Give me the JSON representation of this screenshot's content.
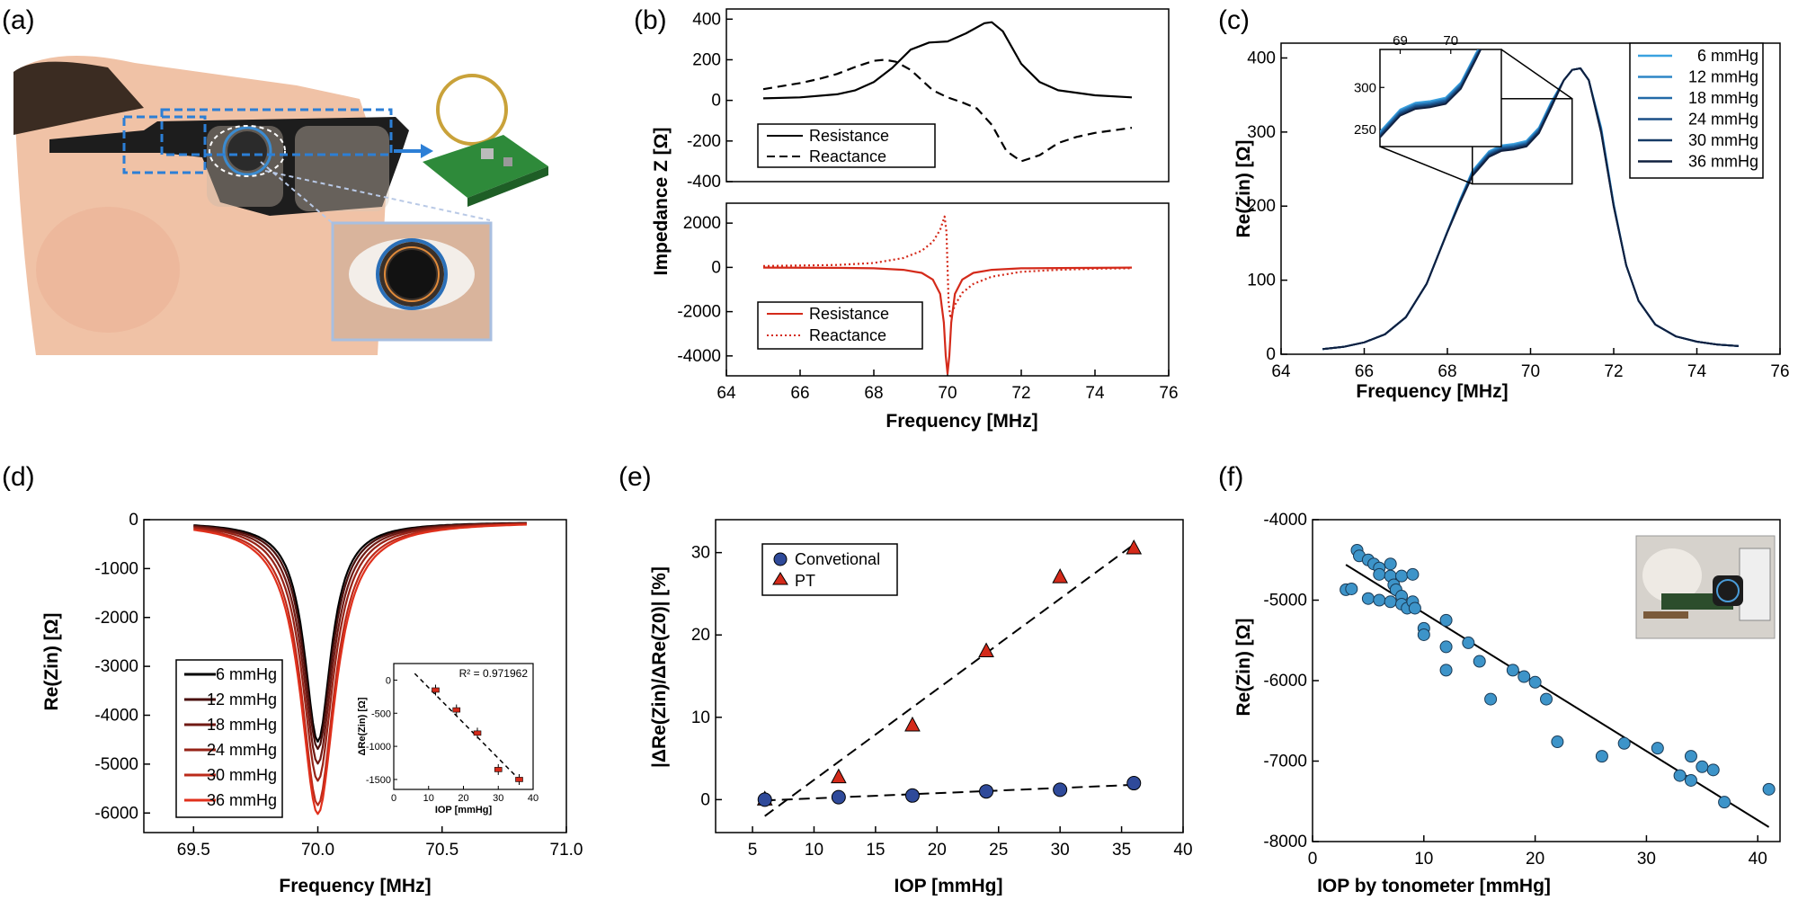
{
  "panels": {
    "a": {
      "label": "(a)"
    },
    "b": {
      "label": "(b)"
    },
    "c": {
      "label": "(c)"
    },
    "d": {
      "label": "(d)"
    },
    "e": {
      "label": "(e)"
    },
    "f": {
      "label": "(f)"
    }
  },
  "colors": {
    "black": "#000000",
    "red": "#d42a1a",
    "blue_marker": "#3d94c9",
    "navy_marker": "#2f4a9a",
    "c_series": [
      "#3aa2e0",
      "#2d86c6",
      "#226aa8",
      "#1a4f86",
      "#163a66",
      "#10203f"
    ],
    "d_series": [
      "#000000",
      "#4a0f0c",
      "#701a14",
      "#962317",
      "#bb2a1a",
      "#e0301c"
    ]
  },
  "chart_data": [
    {
      "id": "b_top",
      "type": "line",
      "ylabel": "Impedance Z [Ω]",
      "xlim": [
        64,
        76
      ],
      "ylim": [
        -400,
        450
      ],
      "yticks": [
        400,
        200,
        0,
        -200,
        -400
      ],
      "legend": "bottom-left",
      "series": [
        {
          "name": "Resistance",
          "style": "solid",
          "x": [
            65,
            66,
            67,
            67.5,
            68,
            68.5,
            69,
            69.5,
            70,
            70.5,
            71,
            71.2,
            71.5,
            72,
            72.5,
            73,
            74,
            75
          ],
          "y": [
            10,
            15,
            30,
            50,
            90,
            160,
            250,
            285,
            290,
            330,
            380,
            385,
            340,
            180,
            90,
            50,
            25,
            15
          ]
        },
        {
          "name": "Reactance",
          "style": "dashed",
          "x": [
            65,
            66,
            66.5,
            67,
            67.5,
            68,
            68.3,
            68.6,
            69,
            69.3,
            69.6,
            70,
            70.4,
            70.8,
            71.2,
            71.6,
            72,
            72.5,
            73,
            73.5,
            74,
            75
          ],
          "y": [
            55,
            85,
            105,
            130,
            165,
            195,
            200,
            190,
            150,
            100,
            50,
            15,
            -10,
            -40,
            -120,
            -250,
            -300,
            -270,
            -210,
            -180,
            -160,
            -135
          ]
        }
      ]
    },
    {
      "id": "b_bottom",
      "type": "line",
      "xlabel": "Frequency [MHz]",
      "xlim": [
        64,
        76
      ],
      "ylim": [
        -4900,
        2900
      ],
      "xticks": [
        64,
        66,
        68,
        70,
        72,
        74,
        76
      ],
      "yticks": [
        2000,
        0,
        -2000,
        -4000
      ],
      "legend": "bottom-left",
      "series": [
        {
          "name": "Resistance",
          "style": "solid",
          "x": [
            65,
            67,
            68,
            68.8,
            69.3,
            69.6,
            69.8,
            69.9,
            69.95,
            70,
            70.05,
            70.1,
            70.2,
            70.4,
            70.7,
            71.2,
            72,
            74,
            75
          ],
          "y": [
            -10,
            -20,
            -40,
            -110,
            -250,
            -550,
            -1200,
            -2500,
            -4000,
            -4800,
            -4000,
            -2500,
            -1200,
            -550,
            -250,
            -110,
            -40,
            -20,
            -10
          ]
        },
        {
          "name": "Reactance",
          "style": "dotted",
          "x": [
            65,
            67,
            68,
            68.8,
            69.3,
            69.6,
            69.8,
            69.92,
            69.97,
            70,
            70.03,
            70.08,
            70.2,
            70.4,
            70.7,
            71.2,
            72,
            73,
            74,
            75
          ],
          "y": [
            60,
            110,
            200,
            420,
            750,
            1150,
            1700,
            2300,
            1600,
            0,
            -1600,
            -2300,
            -1700,
            -1150,
            -750,
            -420,
            -200,
            -110,
            -60,
            -40
          ]
        }
      ]
    },
    {
      "id": "c",
      "type": "line",
      "xlabel": "Frequency [MHz]",
      "ylabel": "Re(Zin) [Ω]",
      "xlim": [
        64,
        76
      ],
      "ylim": [
        0,
        420
      ],
      "xticks": [
        64,
        66,
        68,
        70,
        72,
        74,
        76
      ],
      "yticks": [
        0,
        100,
        200,
        300,
        400
      ],
      "legend": "top-right",
      "base_x": [
        65,
        65.5,
        66,
        66.5,
        67,
        67.5,
        68,
        68.3,
        68.6,
        69,
        69.3,
        69.6,
        69.9,
        70.2,
        70.5,
        70.8,
        71,
        71.2,
        71.4,
        71.7,
        72,
        72.3,
        72.6,
        73,
        73.5,
        74,
        74.5,
        75
      ],
      "base_y": [
        7,
        10,
        16,
        27,
        50,
        95,
        165,
        205,
        242,
        268,
        276,
        278,
        282,
        300,
        335,
        370,
        384,
        386,
        370,
        300,
        200,
        120,
        72,
        40,
        24,
        17,
        13,
        11
      ],
      "series": [
        {
          "name": "6 mmHg",
          "offset": 6
        },
        {
          "name": "12 mmHg",
          "offset": 4.5
        },
        {
          "name": "18 mmHg",
          "offset": 3
        },
        {
          "name": "24 mmHg",
          "offset": 1.5
        },
        {
          "name": "30 mmHg",
          "offset": 0
        },
        {
          "name": "36 mmHg",
          "offset": -1.5
        }
      ],
      "inset": {
        "xticks": [
          69,
          70
        ],
        "yticks": [
          300,
          250
        ],
        "xlim": [
          68.6,
          71.0
        ],
        "ylim": [
          230,
          345
        ]
      }
    },
    {
      "id": "d",
      "type": "line",
      "xlabel": "Frequency [MHz]",
      "ylabel": "Re(Zin) [Ω]",
      "xlim": [
        69.3,
        71.0
      ],
      "ylim": [
        -6400,
        0
      ],
      "xticks": [
        69.5,
        70.0,
        70.5,
        71.0
      ],
      "yticks": [
        0,
        -1000,
        -2000,
        -3000,
        -4000,
        -5000,
        -6000
      ],
      "legend": "bottom-left",
      "series": [
        {
          "name": "6 mmHg",
          "depth": 4500
        },
        {
          "name": "12 mmHg",
          "depth": 4650
        },
        {
          "name": "18 mmHg",
          "depth": 4950
        },
        {
          "name": "24 mmHg",
          "depth": 5300
        },
        {
          "name": "30 mmHg",
          "depth": 5800
        },
        {
          "name": "36 mmHg",
          "depth": 5980
        }
      ],
      "inset": {
        "xlabel": "IOP [mmHg]",
        "ylabel": "ΔRe(Zin) [Ω]",
        "annotation": "R² = 0.971962",
        "xticks": [
          0,
          10,
          20,
          30,
          40
        ],
        "yticks": [
          0,
          -500,
          -1000,
          -1500
        ],
        "xlim": [
          0,
          40
        ],
        "ylim": [
          -1650,
          250
        ],
        "points": [
          {
            "x": 12,
            "y": -150
          },
          {
            "x": 18,
            "y": -450
          },
          {
            "x": 24,
            "y": -800
          },
          {
            "x": 30,
            "y": -1350
          },
          {
            "x": 36,
            "y": -1500
          }
        ],
        "fit": {
          "x": [
            6,
            36
          ],
          "y": [
            100,
            -1500
          ]
        }
      }
    },
    {
      "id": "e",
      "type": "scatter",
      "xlabel": "IOP [mmHg]",
      "ylabel": "|ΔRe(Zin)/ΔRe(Z0)| [%]",
      "xlim": [
        2,
        40
      ],
      "ylim": [
        -4,
        34
      ],
      "xticks": [
        5,
        10,
        15,
        20,
        25,
        30,
        35,
        40
      ],
      "yticks": [
        0,
        10,
        20,
        30
      ],
      "legend": "top-left",
      "series": [
        {
          "name": "Convetional",
          "marker": "circle",
          "x": [
            6,
            12,
            18,
            24,
            30,
            36
          ],
          "y": [
            0,
            0.3,
            0.5,
            1.0,
            1.2,
            2.0
          ],
          "fit": {
            "x": [
              6,
              36
            ],
            "y": [
              -0.1,
              1.8
            ]
          }
        },
        {
          "name": "PT",
          "marker": "triangle",
          "x": [
            6,
            12,
            18,
            24,
            30,
            36
          ],
          "y": [
            0,
            2.7,
            9,
            18,
            27,
            30.5
          ],
          "fit": {
            "x": [
              6,
              36
            ],
            "y": [
              -2,
              31
            ]
          }
        }
      ]
    },
    {
      "id": "f",
      "type": "scatter",
      "xlabel": "IOP by tonometer [mmHg]",
      "ylabel": "Re(Zin) [Ω]",
      "xlim": [
        0,
        42
      ],
      "ylim": [
        -8000,
        -4000
      ],
      "xticks": [
        0,
        10,
        20,
        30,
        40
      ],
      "yticks": [
        -4000,
        -5000,
        -6000,
        -7000,
        -8000
      ],
      "points": [
        [
          3,
          -4870
        ],
        [
          3.5,
          -4860
        ],
        [
          4,
          -4380
        ],
        [
          4.2,
          -4450
        ],
        [
          5,
          -4500
        ],
        [
          5,
          -4980
        ],
        [
          5.5,
          -4550
        ],
        [
          6,
          -4600
        ],
        [
          6,
          -4680
        ],
        [
          6,
          -5000
        ],
        [
          7,
          -4550
        ],
        [
          7,
          -4700
        ],
        [
          7,
          -5020
        ],
        [
          7.3,
          -4810
        ],
        [
          7.5,
          -4870
        ],
        [
          8,
          -4700
        ],
        [
          8,
          -4950
        ],
        [
          8,
          -5050
        ],
        [
          8.5,
          -5100
        ],
        [
          9,
          -4680
        ],
        [
          9,
          -5020
        ],
        [
          9.2,
          -5100
        ],
        [
          10,
          -5350
        ],
        [
          10,
          -5430
        ],
        [
          12,
          -5250
        ],
        [
          12,
          -5580
        ],
        [
          12,
          -5870
        ],
        [
          14,
          -5530
        ],
        [
          15,
          -5760
        ],
        [
          16,
          -6230
        ],
        [
          18,
          -5870
        ],
        [
          19,
          -5950
        ],
        [
          20,
          -6020
        ],
        [
          21,
          -6230
        ],
        [
          22,
          -6760
        ],
        [
          26,
          -6940
        ],
        [
          28,
          -6780
        ],
        [
          31,
          -6840
        ],
        [
          33,
          -7180
        ],
        [
          34,
          -6940
        ],
        [
          34,
          -7240
        ],
        [
          35,
          -7070
        ],
        [
          36,
          -7110
        ],
        [
          37,
          -7510
        ],
        [
          41,
          -7350
        ]
      ],
      "fit": {
        "x": [
          3,
          41
        ],
        "y": [
          -4560,
          -7820
        ]
      }
    }
  ]
}
